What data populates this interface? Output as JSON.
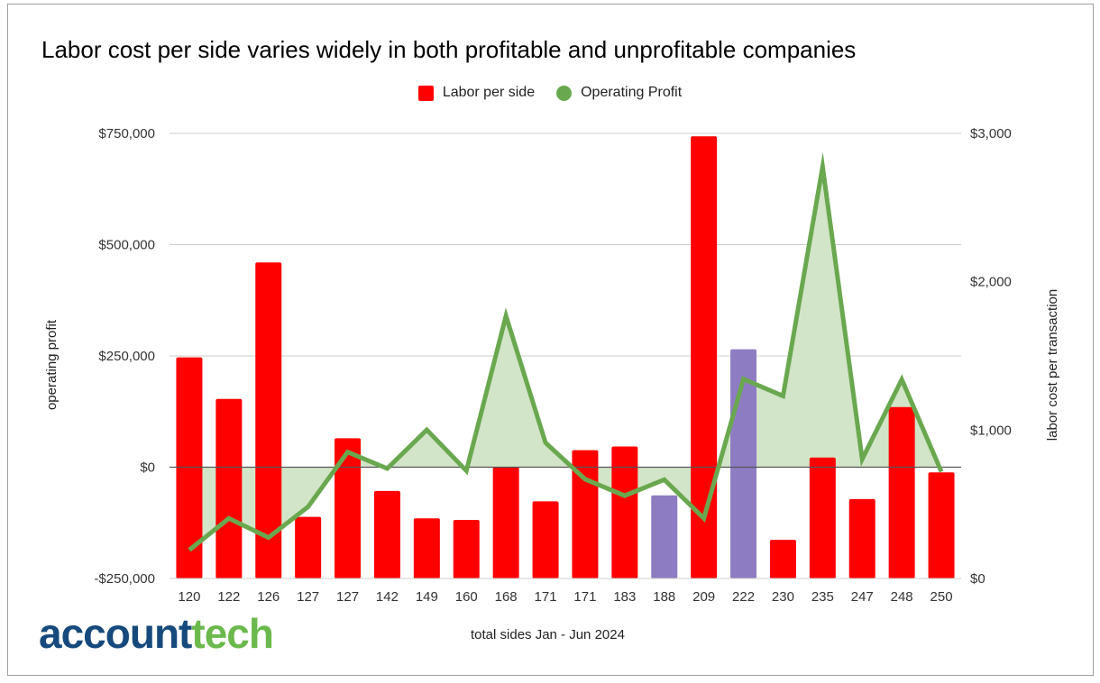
{
  "chart_data": {
    "type": "bar+area-line",
    "title": "Labor cost per side varies widely in both profitable and unprofitable companies",
    "xlabel": "total sides Jan - Jun 2024",
    "ylabel_left": "operating profit",
    "ylabel_right": "labor cost per transaction",
    "categories": [
      "120",
      "122",
      "126",
      "127",
      "127",
      "142",
      "149",
      "160",
      "168",
      "171",
      "171",
      "183",
      "188",
      "209",
      "222",
      "230",
      "235",
      "247",
      "248",
      "250"
    ],
    "series": [
      {
        "name": "Labor per side",
        "type": "bar",
        "axis": "right",
        "color": "#ff0000",
        "highlight_color": "#8e7cc3",
        "highlighted_indices": [
          12,
          14
        ],
        "values": [
          1490,
          1210,
          2130,
          415,
          945,
          590,
          405,
          395,
          750,
          520,
          865,
          890,
          560,
          2980,
          1545,
          260,
          815,
          535,
          1155,
          715
        ]
      },
      {
        "name": "Operating Profit",
        "type": "area-line",
        "axis": "left",
        "color": "#6aa84f",
        "fill_color": "#d2e5c8",
        "values": [
          -186000,
          -115000,
          -158000,
          -89000,
          34000,
          -3000,
          84000,
          -8000,
          340000,
          55000,
          -27000,
          -64000,
          -28000,
          -115000,
          198000,
          160000,
          675000,
          18000,
          197000,
          -10000
        ]
      }
    ],
    "y_left": {
      "range": [
        -250000,
        750000
      ],
      "ticks": [
        -250000,
        0,
        250000,
        500000,
        750000
      ],
      "tick_labels": [
        "-$250,000",
        "$0",
        "$250,000",
        "$500,000",
        "$750,000"
      ]
    },
    "y_right": {
      "range": [
        0,
        3000
      ],
      "ticks": [
        0,
        1000,
        2000,
        3000
      ],
      "tick_labels": [
        "$0",
        "$1,000",
        "$2,000",
        "$3,000"
      ]
    },
    "grid": true,
    "legend_position": "top-center"
  },
  "legend": [
    {
      "label": "Labor per side",
      "color": "#ff0000",
      "shape": "square"
    },
    {
      "label": "Operating Profit",
      "color": "#6aa84f",
      "shape": "circle"
    }
  ],
  "logo": {
    "part1": "account",
    "part2": "tech"
  }
}
